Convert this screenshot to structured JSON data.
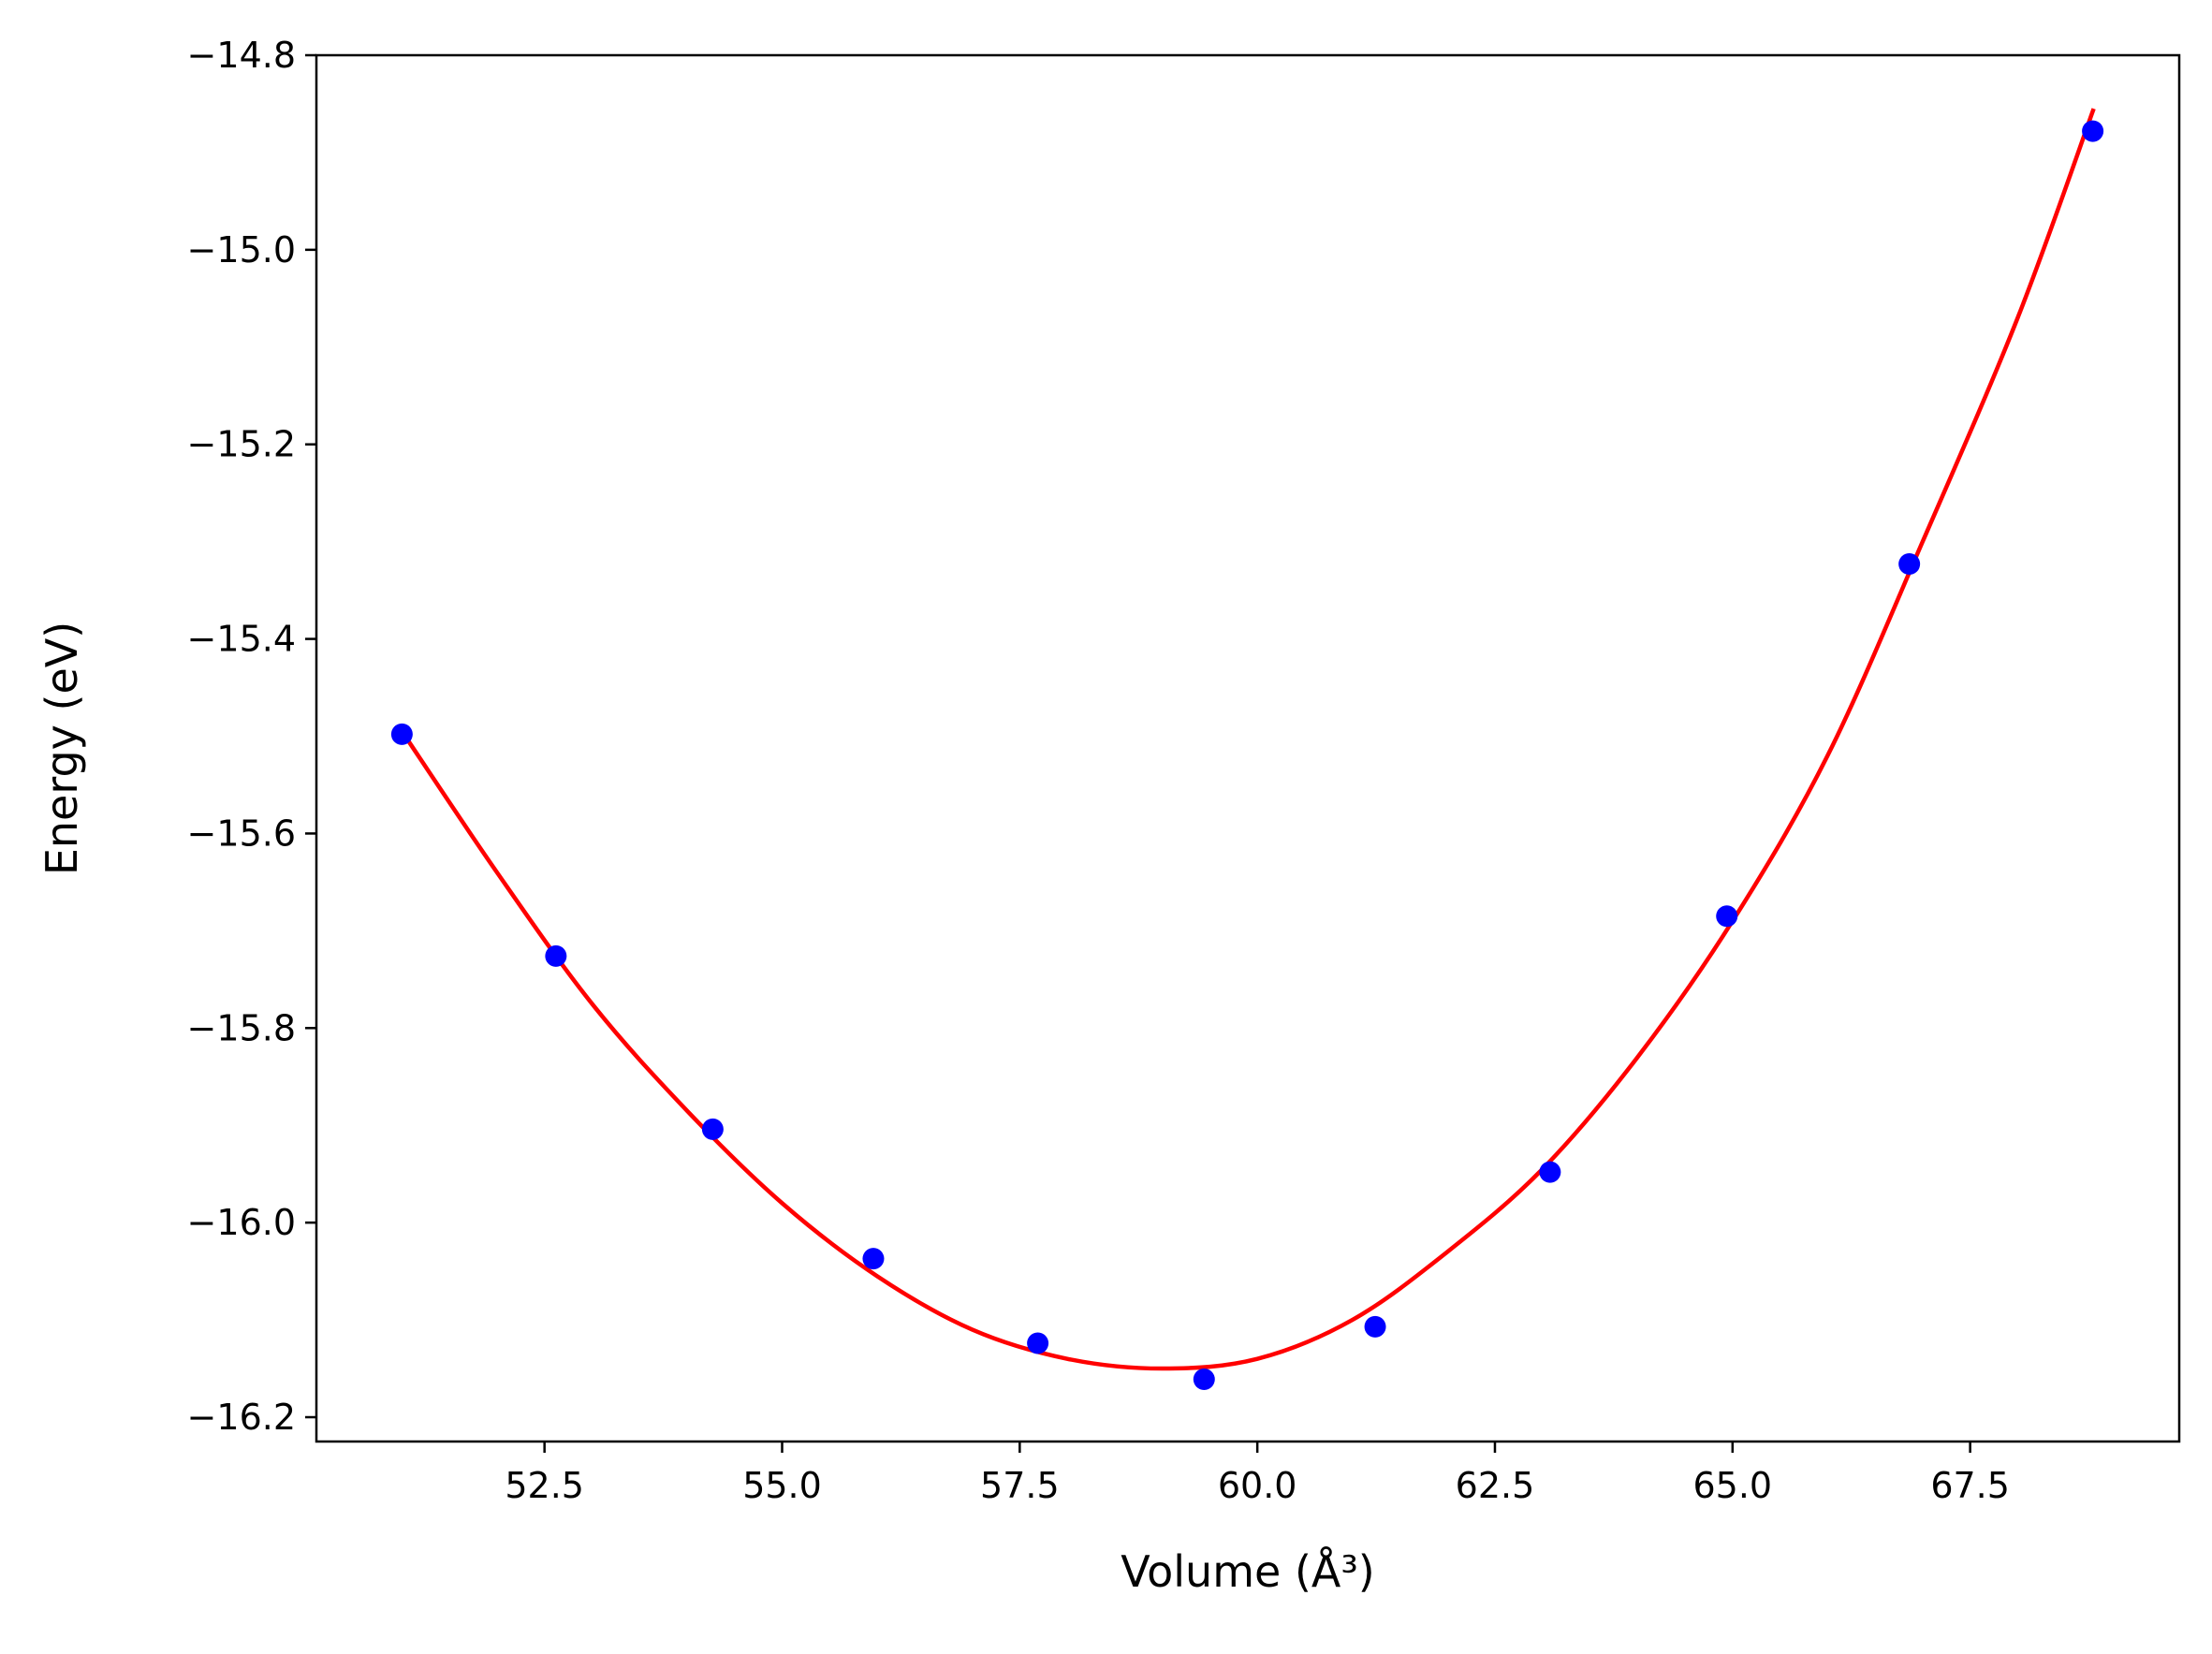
{
  "chart_data": {
    "type": "scatter",
    "xlabel": "Volume (Å³)",
    "ylabel": "Energy (eV)",
    "xlim": [
      50.1,
      69.7
    ],
    "ylim": [
      -16.225,
      -14.8
    ],
    "xticks": [
      52.5,
      55.0,
      57.5,
      60.0,
      62.5,
      65.0,
      67.5
    ],
    "xtick_labels": [
      "52.5",
      "55.0",
      "57.5",
      "60.0",
      "62.5",
      "65.0",
      "67.5"
    ],
    "yticks": [
      -14.8,
      -15.0,
      -15.2,
      -15.4,
      -15.6,
      -15.8,
      -16.0,
      -16.2
    ],
    "ytick_labels": [
      "−14.8",
      "−15.0",
      "−15.2",
      "−15.4",
      "−15.6",
      "−15.8",
      "−16.0",
      "−16.2"
    ],
    "grid": false,
    "series": [
      {
        "kind": "points",
        "color": "#0000ff",
        "x": [
          51.0,
          52.62,
          54.27,
          55.96,
          57.69,
          59.44,
          61.24,
          63.08,
          64.94,
          66.86,
          68.79
        ],
        "y": [
          -15.498,
          -15.726,
          -15.904,
          -16.037,
          -16.124,
          -16.161,
          -16.107,
          -15.948,
          -15.685,
          -15.323,
          -14.878
        ]
      },
      {
        "kind": "fit-curve",
        "color": "#ff0000",
        "x": [
          51.0,
          52.0,
          53.0,
          54.0,
          55.0,
          56.0,
          57.0,
          58.0,
          59.0,
          60.0,
          61.0,
          62.0,
          63.0,
          64.0,
          65.0,
          66.0,
          67.0,
          68.0,
          68.8
        ],
        "y": [
          -15.495,
          -15.64,
          -15.775,
          -15.885,
          -15.98,
          -16.055,
          -16.11,
          -16.14,
          -16.15,
          -16.14,
          -16.1,
          -16.03,
          -15.945,
          -15.83,
          -15.69,
          -15.52,
          -15.3,
          -15.07,
          -14.855
        ]
      }
    ]
  }
}
